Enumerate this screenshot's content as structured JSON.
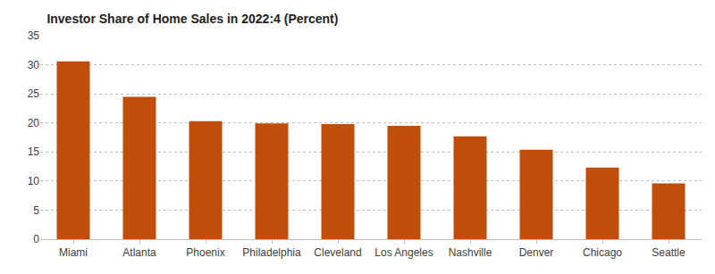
{
  "chart_data": {
    "type": "bar",
    "title": "Investor Share of Home Sales in 2022:4 (Percent)",
    "categories": [
      "Miami",
      "Atlanta",
      "Phoenix",
      "Philadelphia",
      "Cleveland",
      "Los Angeles",
      "Nashville",
      "Denver",
      "Chicago",
      "Seattle"
    ],
    "values": [
      30.6,
      24.5,
      20.3,
      19.9,
      19.8,
      19.5,
      17.7,
      15.4,
      12.3,
      9.6
    ],
    "color": "#c14d0b",
    "ylim": [
      0,
      35
    ],
    "yticks": [
      0,
      5,
      10,
      15,
      20,
      25,
      30,
      35
    ],
    "grid": true
  }
}
